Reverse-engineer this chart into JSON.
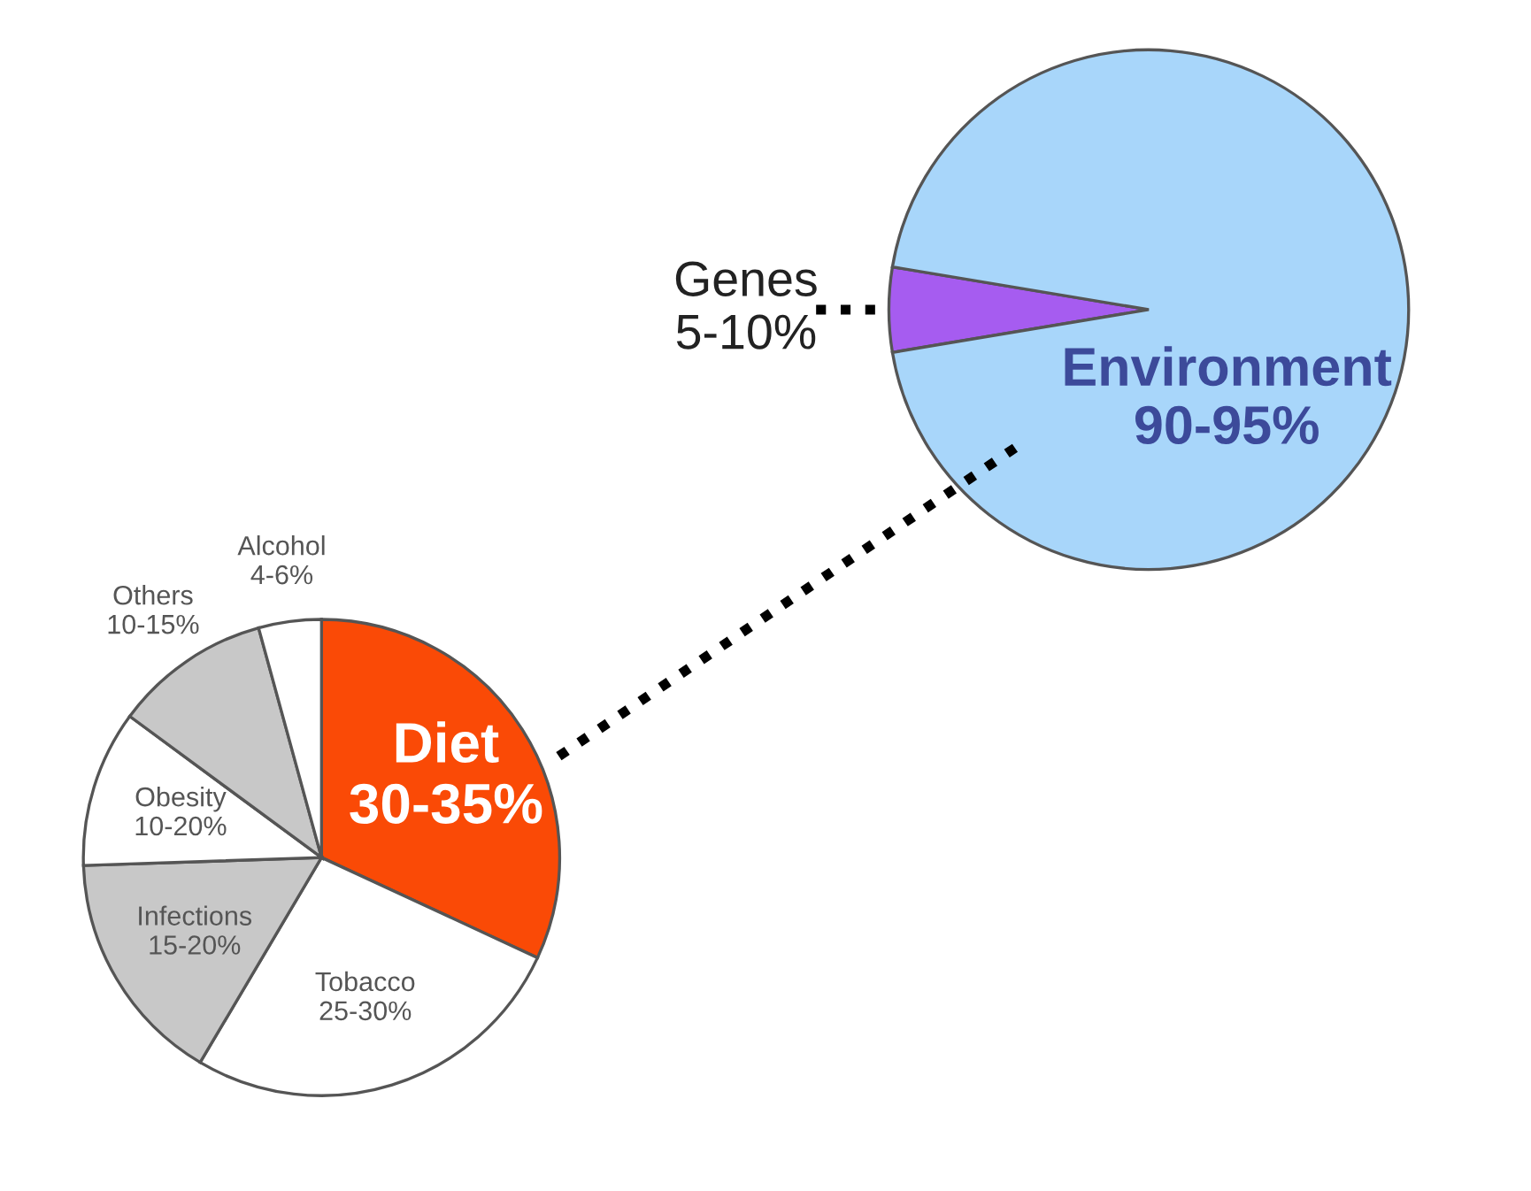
{
  "chart_data": [
    {
      "type": "pie",
      "categories": [
        "Genes",
        "Environment"
      ],
      "values": [
        5,
        90
      ],
      "value_labels": [
        "5-10%",
        "90-95%"
      ],
      "colors": [
        "#a65cf0",
        "#a8d6fa"
      ]
    },
    {
      "type": "pie",
      "categories": [
        "Diet",
        "Tobacco",
        "Infections",
        "Obesity",
        "Others",
        "Alcohol"
      ],
      "values": [
        30,
        25,
        15,
        10,
        10,
        4
      ],
      "value_labels": [
        "30-35%",
        "25-30%",
        "15-20%",
        "10-20%",
        "10-15%",
        "4-6%"
      ],
      "colors": [
        "#fa4a06",
        "#ffffff",
        "#c8c8c8",
        "#ffffff",
        "#c8c8c8",
        "#ffffff"
      ]
    }
  ]
}
